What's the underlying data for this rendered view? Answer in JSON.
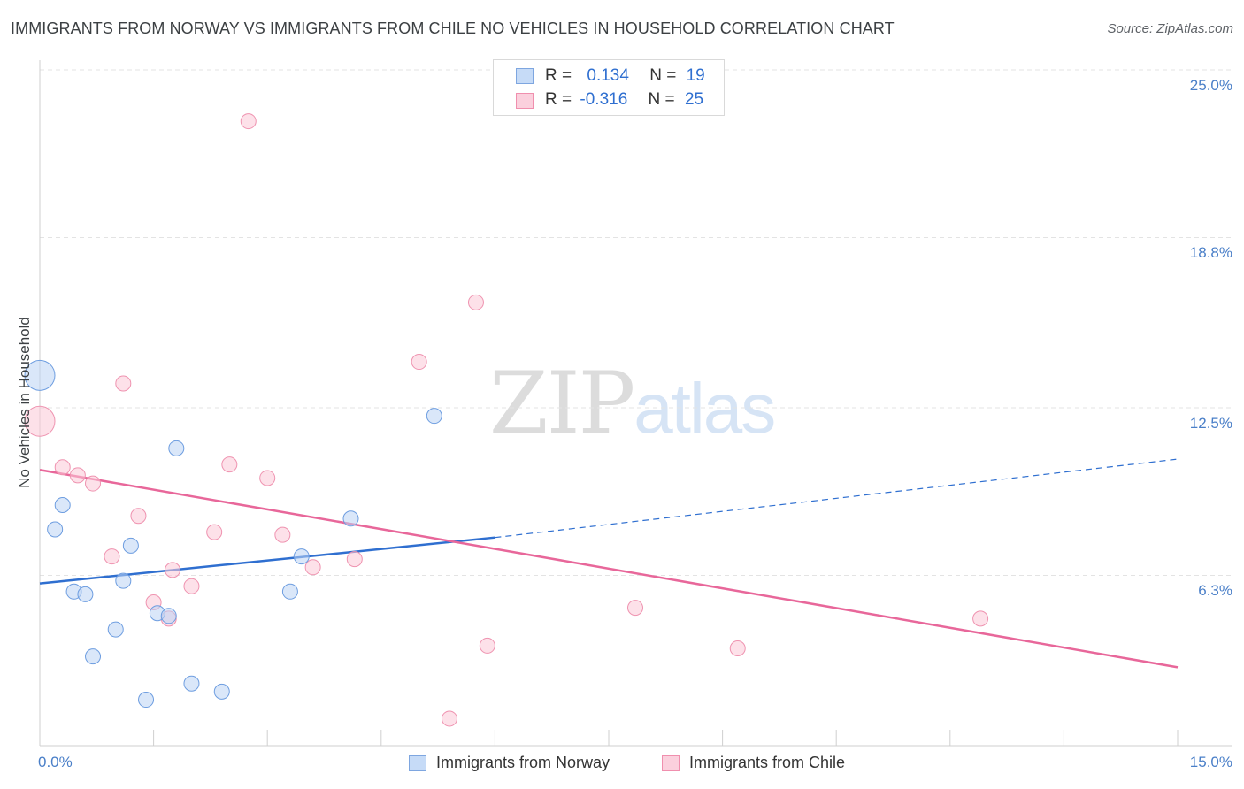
{
  "header": {
    "title": "IMMIGRANTS FROM NORWAY VS IMMIGRANTS FROM CHILE NO VEHICLES IN HOUSEHOLD CORRELATION CHART",
    "source": "Source: ZipAtlas.com"
  },
  "watermark": {
    "zip": "ZIP",
    "atlas": "atlas"
  },
  "legend": {
    "r_label": "R =",
    "n_label": "N =",
    "norway": {
      "r": "0.134",
      "n": "19"
    },
    "chile": {
      "r": "-0.316",
      "n": "25"
    }
  },
  "chart_data": {
    "type": "scatter",
    "title": "IMMIGRANTS FROM NORWAY VS IMMIGRANTS FROM CHILE NO VEHICLES IN HOUSEHOLD CORRELATION CHART",
    "xlabel": "",
    "ylabel": "No Vehicles in Household",
    "xlim": [
      0,
      15
    ],
    "ylim": [
      0,
      25
    ],
    "x_tick_labels": [
      "0.0%",
      "15.0%"
    ],
    "y_ticks": [
      6.3,
      12.5,
      18.8,
      25.0
    ],
    "y_tick_labels": [
      "6.3%",
      "12.5%",
      "18.8%",
      "25.0%"
    ],
    "grid": true,
    "legend_position": "bottom",
    "colors": {
      "norway": "#6a9ae0",
      "chile": "#f08fae",
      "norway_line": "#2f6fd0",
      "chile_line": "#e8679a"
    },
    "series": [
      {
        "name": "Immigrants from Norway",
        "points": [
          {
            "x": 0.0,
            "y": 13.7,
            "big": true
          },
          {
            "x": 0.2,
            "y": 8.0
          },
          {
            "x": 0.3,
            "y": 8.9
          },
          {
            "x": 0.45,
            "y": 5.7
          },
          {
            "x": 0.6,
            "y": 5.6
          },
          {
            "x": 0.7,
            "y": 3.3
          },
          {
            "x": 1.0,
            "y": 4.3
          },
          {
            "x": 1.1,
            "y": 6.1
          },
          {
            "x": 1.2,
            "y": 7.4
          },
          {
            "x": 1.4,
            "y": 1.7
          },
          {
            "x": 1.55,
            "y": 4.9
          },
          {
            "x": 1.7,
            "y": 4.8
          },
          {
            "x": 1.8,
            "y": 11.0
          },
          {
            "x": 2.0,
            "y": 2.3
          },
          {
            "x": 2.4,
            "y": 2.0
          },
          {
            "x": 3.3,
            "y": 5.7
          },
          {
            "x": 3.45,
            "y": 7.0
          },
          {
            "x": 4.1,
            "y": 8.4
          },
          {
            "x": 5.2,
            "y": 12.2
          }
        ],
        "trend": {
          "x0": 0,
          "y0": 6.0,
          "x1": 6.0,
          "y1": 7.7,
          "x1_dashed": 15,
          "y1_dashed": 10.6
        }
      },
      {
        "name": "Immigrants from Chile",
        "points": [
          {
            "x": 0.0,
            "y": 12.0,
            "big": true
          },
          {
            "x": 0.3,
            "y": 10.3
          },
          {
            "x": 0.5,
            "y": 10.0
          },
          {
            "x": 0.7,
            "y": 9.7
          },
          {
            "x": 0.95,
            "y": 7.0
          },
          {
            "x": 1.1,
            "y": 13.4
          },
          {
            "x": 1.3,
            "y": 8.5
          },
          {
            "x": 1.5,
            "y": 5.3
          },
          {
            "x": 1.7,
            "y": 4.7
          },
          {
            "x": 1.75,
            "y": 6.5
          },
          {
            "x": 2.0,
            "y": 5.9
          },
          {
            "x": 2.3,
            "y": 7.9
          },
          {
            "x": 2.5,
            "y": 10.4
          },
          {
            "x": 2.75,
            "y": 23.1
          },
          {
            "x": 3.0,
            "y": 9.9
          },
          {
            "x": 3.2,
            "y": 7.8
          },
          {
            "x": 3.6,
            "y": 6.6
          },
          {
            "x": 4.15,
            "y": 6.9
          },
          {
            "x": 5.0,
            "y": 14.2
          },
          {
            "x": 5.4,
            "y": 1.0
          },
          {
            "x": 5.75,
            "y": 16.4
          },
          {
            "x": 5.9,
            "y": 3.7
          },
          {
            "x": 7.85,
            "y": 5.1
          },
          {
            "x": 9.2,
            "y": 3.6
          },
          {
            "x": 12.4,
            "y": 4.7
          }
        ],
        "trend": {
          "x0": 0,
          "y0": 10.2,
          "x1": 15,
          "y1": 2.9
        }
      }
    ]
  }
}
